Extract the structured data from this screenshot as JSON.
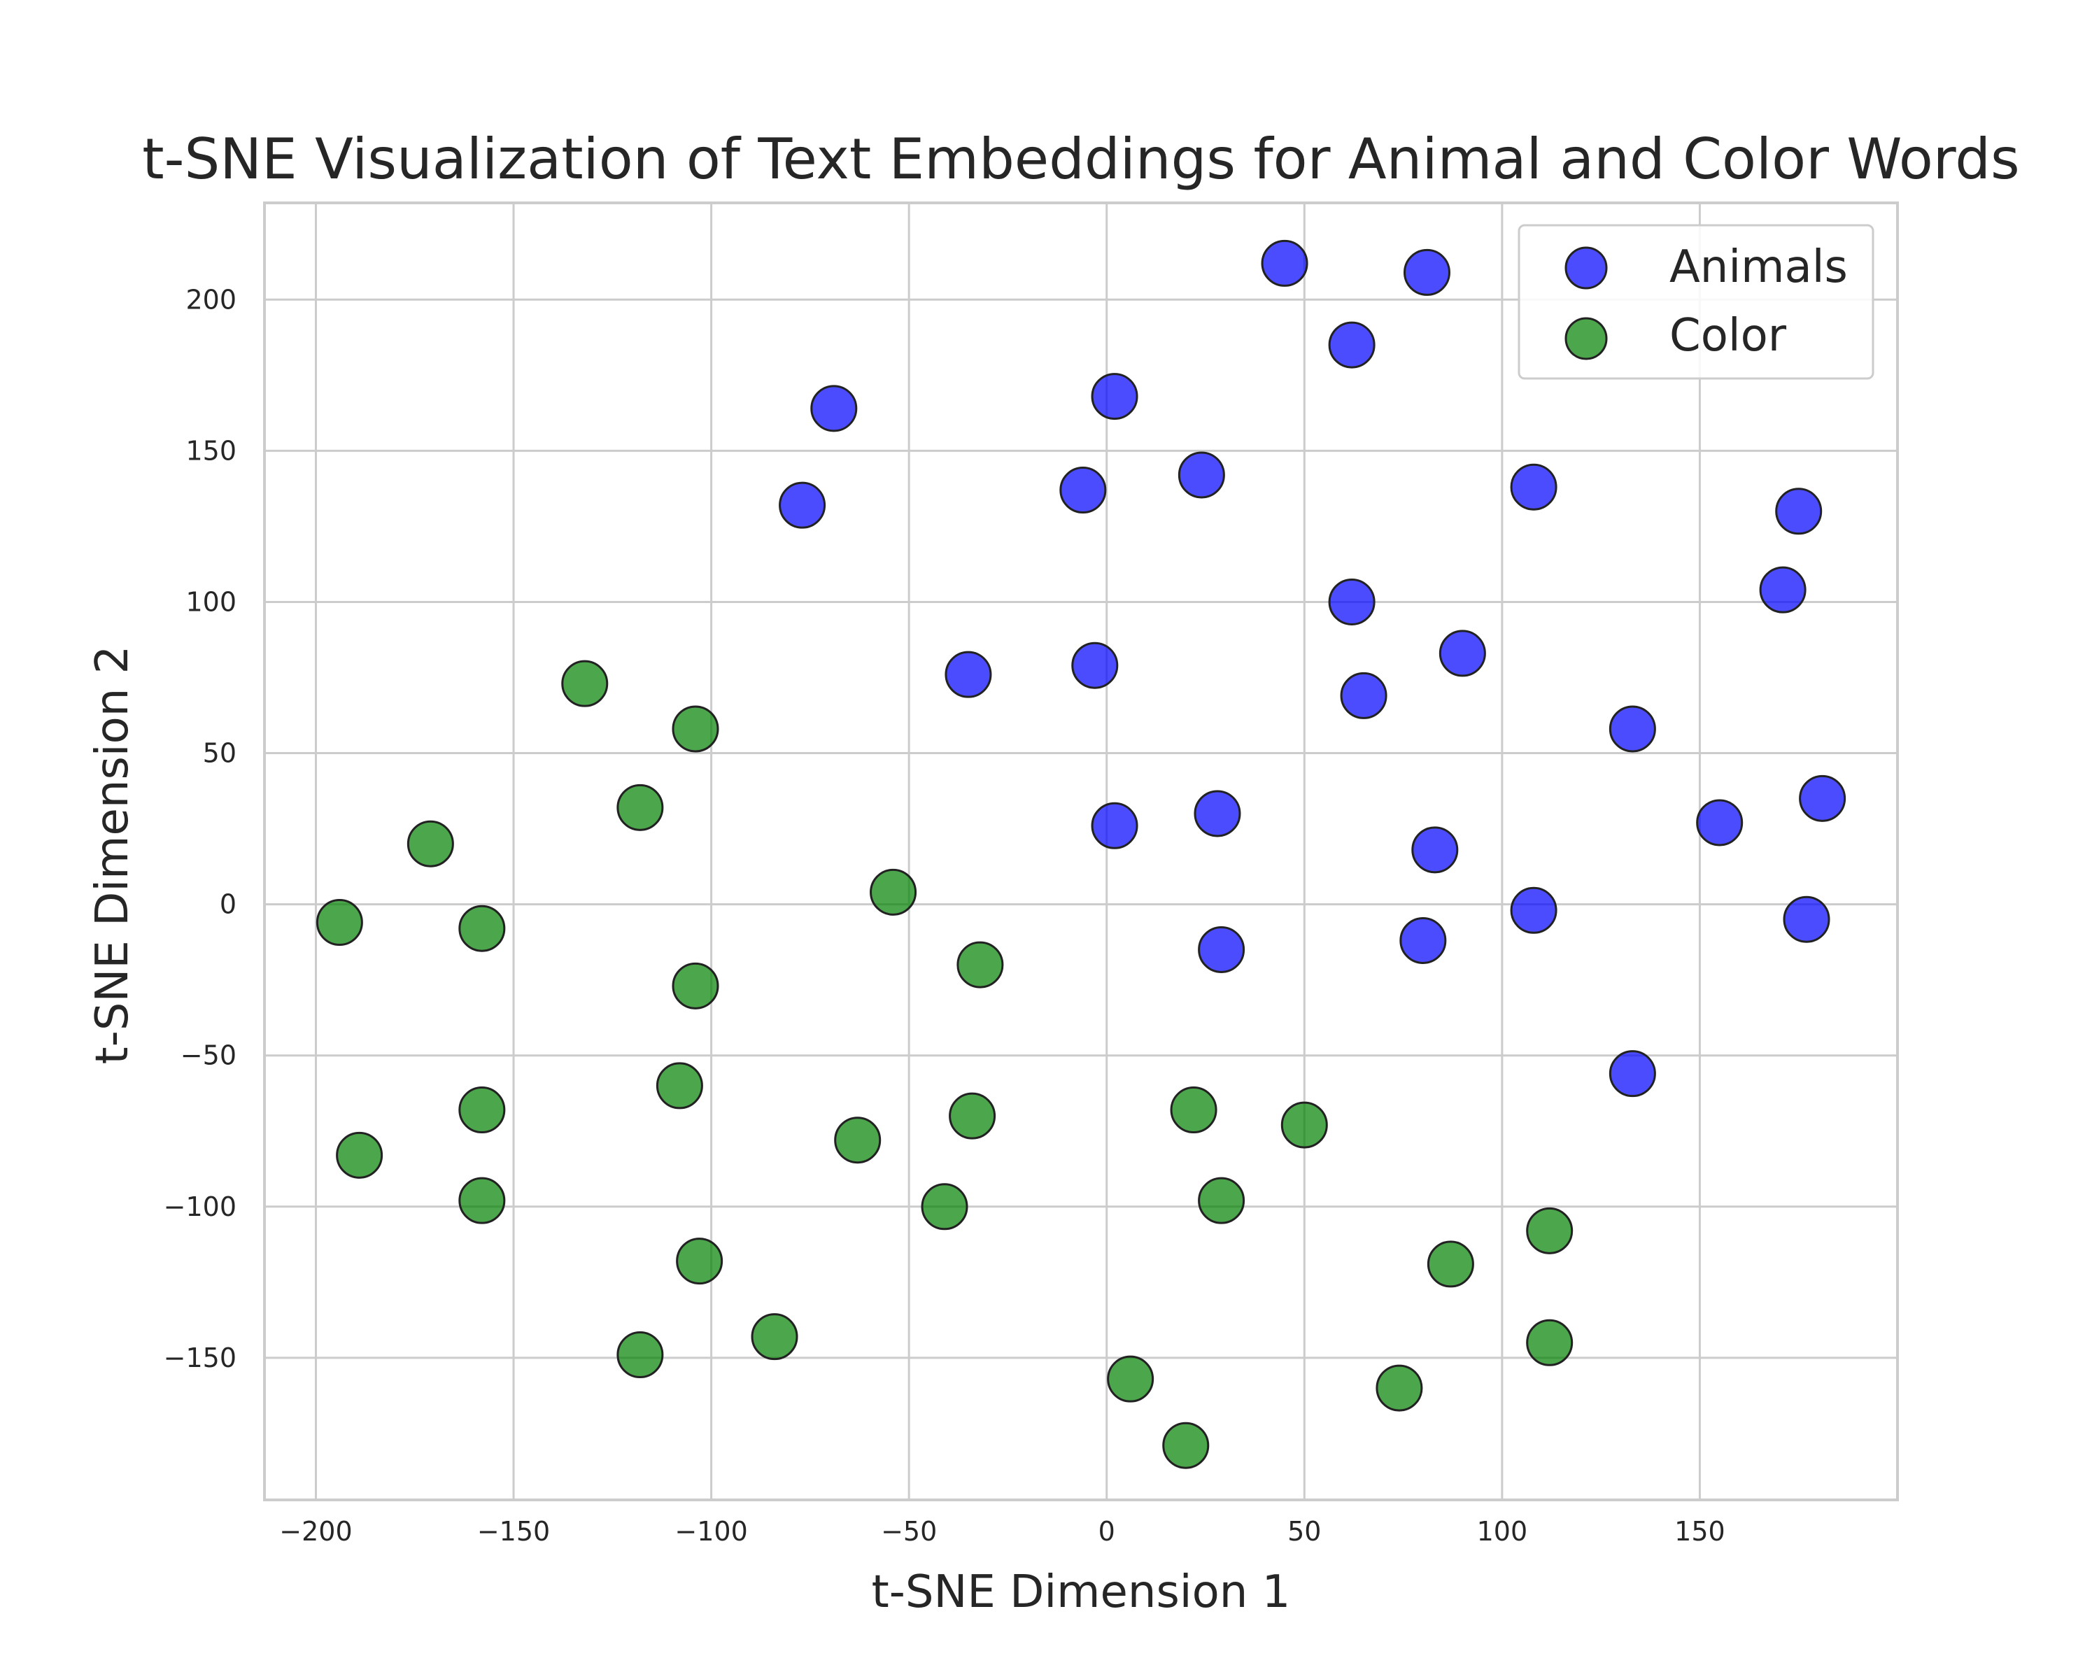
{
  "chart_data": {
    "type": "scatter",
    "title": "t-SNE Visualization of Text Embeddings for Animal and Color Words",
    "xlabel": "t-SNE Dimension 1",
    "ylabel": "t-SNE Dimension 2",
    "xlim": [
      -213,
      200
    ],
    "ylim": [
      -197,
      232
    ],
    "xticks": [
      -200,
      -150,
      -100,
      -50,
      0,
      50,
      100,
      150
    ],
    "yticks": [
      -150,
      -100,
      -50,
      0,
      50,
      100,
      150,
      200
    ],
    "xtick_labels": [
      "−200",
      "−150",
      "−100",
      "−50",
      "0",
      "50",
      "100",
      "150"
    ],
    "ytick_labels": [
      "−150",
      "−100",
      "−50",
      "0",
      "50",
      "100",
      "150",
      "200"
    ],
    "grid": true,
    "legend_position": "top-right",
    "series": [
      {
        "name": "Animals",
        "color": "#0000ff",
        "points": [
          [
            45,
            212
          ],
          [
            81,
            209
          ],
          [
            62,
            185
          ],
          [
            2,
            168
          ],
          [
            -69,
            164
          ],
          [
            -77,
            132
          ],
          [
            -6,
            137
          ],
          [
            24,
            142
          ],
          [
            108,
            138
          ],
          [
            175,
            130
          ],
          [
            171,
            104
          ],
          [
            62,
            100
          ],
          [
            90,
            83
          ],
          [
            -3,
            79
          ],
          [
            -35,
            76
          ],
          [
            65,
            69
          ],
          [
            133,
            58
          ],
          [
            155,
            27
          ],
          [
            181,
            35
          ],
          [
            2,
            26
          ],
          [
            28,
            30
          ],
          [
            83,
            18
          ],
          [
            108,
            -2
          ],
          [
            177,
            -5
          ],
          [
            80,
            -12
          ],
          [
            29,
            -15
          ],
          [
            133,
            -56
          ]
        ]
      },
      {
        "name": "Color",
        "color": "#008000",
        "points": [
          [
            -132,
            73
          ],
          [
            -104,
            58
          ],
          [
            -118,
            32
          ],
          [
            -171,
            20
          ],
          [
            -194,
            -6
          ],
          [
            -158,
            -8
          ],
          [
            -54,
            4
          ],
          [
            -104,
            -27
          ],
          [
            -32,
            -20
          ],
          [
            -108,
            -60
          ],
          [
            -158,
            -68
          ],
          [
            -189,
            -83
          ],
          [
            -63,
            -78
          ],
          [
            -34,
            -70
          ],
          [
            22,
            -68
          ],
          [
            50,
            -73
          ],
          [
            -158,
            -98
          ],
          [
            -41,
            -100
          ],
          [
            29,
            -98
          ],
          [
            -103,
            -118
          ],
          [
            -118,
            -149
          ],
          [
            -84,
            -143
          ],
          [
            112,
            -108
          ],
          [
            87,
            -119
          ],
          [
            112,
            -145
          ],
          [
            6,
            -157
          ],
          [
            74,
            -160
          ],
          [
            20,
            -179
          ]
        ]
      }
    ]
  }
}
